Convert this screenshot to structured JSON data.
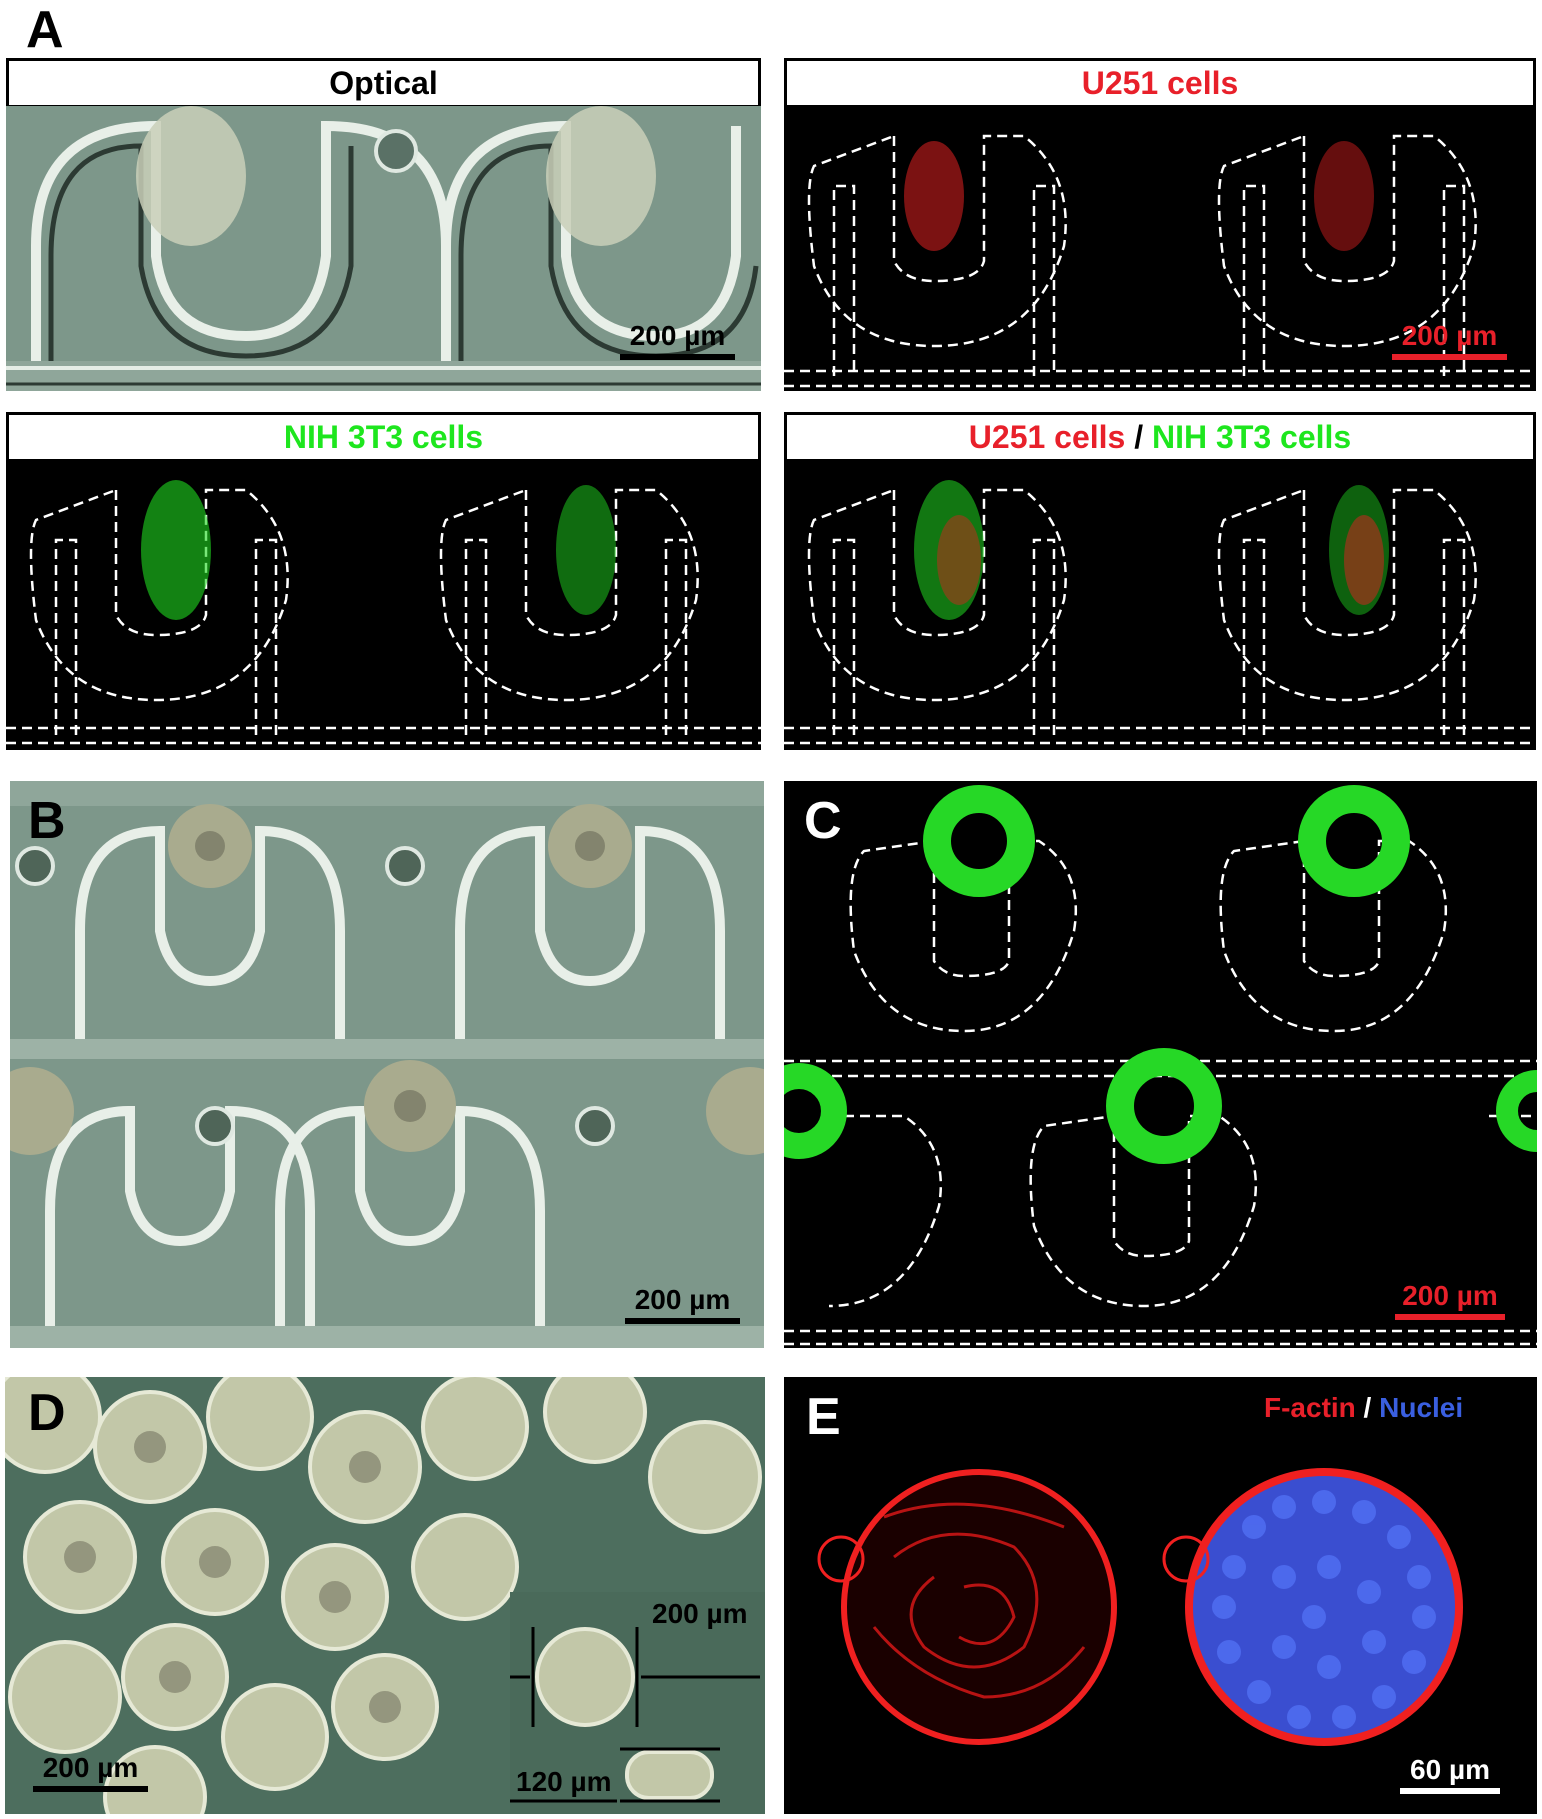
{
  "figure": {
    "panel_labels": {
      "a": "A",
      "b": "B",
      "c": "C",
      "d": "D",
      "e": "E"
    },
    "panel_a": {
      "optical_title": "Optical",
      "u251_title": "U251 cells",
      "nih_title": "NIH 3T3 cells",
      "merge_title_red": "U251 cells",
      "merge_title_sep": " / ",
      "merge_title_green": "NIH 3T3 cells",
      "scale_optical": "200 µm",
      "scale_u251": "200 µm"
    },
    "panel_b": {
      "scale": "200 µm"
    },
    "panel_c": {
      "scale": "200 µm"
    },
    "panel_d": {
      "scale": "200 µm",
      "inset_diameter": "200 µm",
      "inset_height": "120 µm"
    },
    "panel_e": {
      "legend_red": "F-actin",
      "legend_sep": " / ",
      "legend_blue": "Nuclei",
      "scale": "60 µm"
    }
  },
  "colors": {
    "red": "#e8202a",
    "green": "#1ee61e",
    "blue": "#3a5fe0",
    "optical_bg": "#6e8a7c",
    "fluor_bg": "#000000"
  }
}
